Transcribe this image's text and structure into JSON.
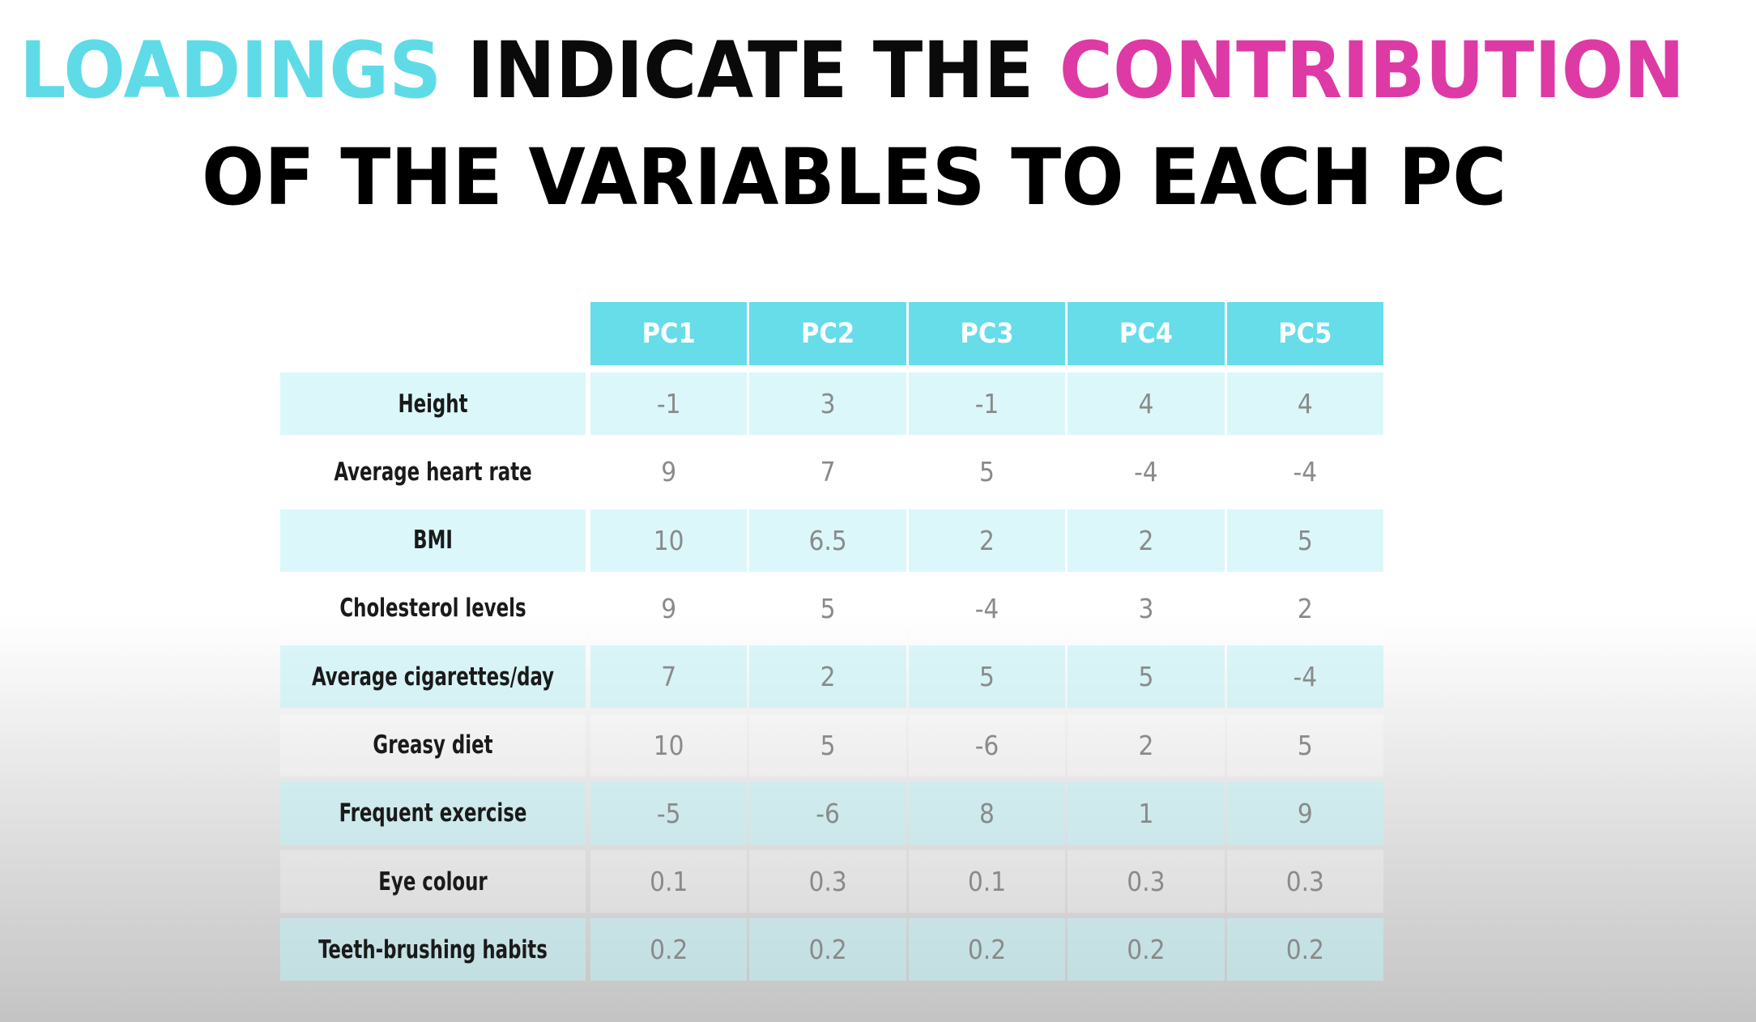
{
  "title": {
    "line1": [
      {
        "text": "LOADINGS",
        "color": "#5fdbe8"
      },
      {
        "text": " INDICATE THE ",
        "color": "#0a0a0a"
      },
      {
        "text": "CONTRIBUTION",
        "color": "#de3aa6"
      }
    ],
    "line2": "OF THE VARIABLES  TO EACH PC"
  },
  "table": {
    "columns": [
      "PC1",
      "PC2",
      "PC3",
      "PC4",
      "PC5"
    ],
    "rows": [
      {
        "label": "Height",
        "values": [
          -1,
          3,
          -1,
          4,
          4
        ]
      },
      {
        "label": "Average heart rate",
        "values": [
          9,
          7,
          5,
          -4,
          -4
        ]
      },
      {
        "label": "BMI",
        "values": [
          10,
          6.5,
          2,
          2,
          5
        ]
      },
      {
        "label": "Cholesterol levels",
        "values": [
          9,
          5,
          -4,
          3,
          2
        ]
      },
      {
        "label": "Average cigarettes/day",
        "values": [
          7,
          2,
          5,
          5,
          -4
        ]
      },
      {
        "label": "Greasy diet",
        "values": [
          10,
          5,
          -6,
          2,
          5
        ]
      },
      {
        "label": "Frequent exercise",
        "values": [
          -5,
          -6,
          8,
          1,
          9
        ]
      },
      {
        "label": "Eye colour",
        "values": [
          0.1,
          0.3,
          0.1,
          0.3,
          0.3
        ]
      },
      {
        "label": "Teeth-brushing habits",
        "values": [
          0.2,
          0.2,
          0.2,
          0.2,
          0.2
        ]
      }
    ]
  }
}
